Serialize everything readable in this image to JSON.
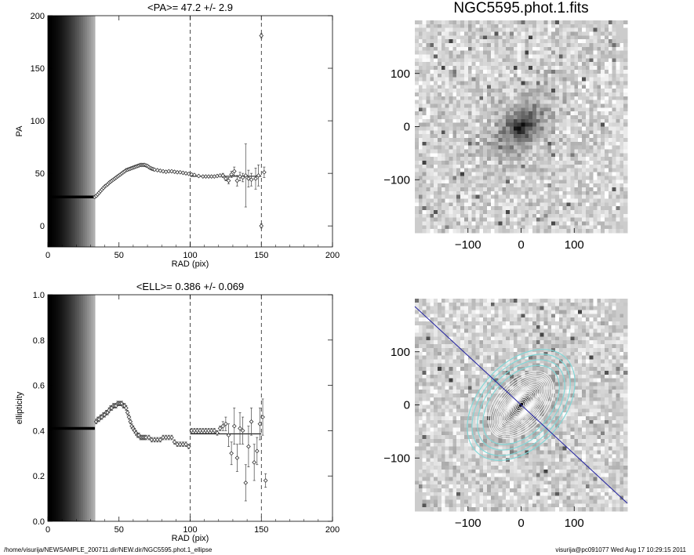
{
  "footer": {
    "path": "/home/visurija/NEWSAMPLE_200711.dir/NEW.dir/NGC5595.phot.1_ellipse",
    "user_stamp": "visurija@pc091077  Wed Aug 17 10:29:15 2011"
  },
  "chart_data": [
    {
      "id": "pa-panel",
      "type": "scatter",
      "title": "<PA>=  47.2 +/-   2.9",
      "xlabel": "RAD (pix)",
      "ylabel": "PA",
      "xlim": [
        0,
        200
      ],
      "ylim": [
        -20,
        200
      ],
      "xticks": [
        0,
        50,
        100,
        150,
        200
      ],
      "yticks": [
        0,
        50,
        100,
        150,
        200
      ],
      "fit_value": 47.2,
      "fit_range": [
        100,
        150
      ],
      "vlines": [
        100,
        150
      ],
      "grayscale_band_x": [
        0,
        33
      ],
      "inner_constant": {
        "x_range": [
          0,
          33
        ],
        "y": 27.5
      },
      "points": [
        [
          33,
          27.5,
          1
        ],
        [
          34,
          28.5,
          1
        ],
        [
          35,
          30,
          1
        ],
        [
          36,
          31.5,
          1
        ],
        [
          37,
          33,
          1
        ],
        [
          38,
          34.5,
          1
        ],
        [
          39,
          36,
          1
        ],
        [
          40,
          37.5,
          1
        ],
        [
          41,
          38.5,
          1
        ],
        [
          42,
          39.5,
          1
        ],
        [
          43,
          41,
          1
        ],
        [
          44,
          42,
          1
        ],
        [
          45,
          43,
          1
        ],
        [
          46,
          44,
          1
        ],
        [
          47,
          45,
          1
        ],
        [
          48,
          46,
          1
        ],
        [
          49,
          47,
          1
        ],
        [
          50,
          48,
          1
        ],
        [
          51,
          49,
          1
        ],
        [
          52,
          50,
          1
        ],
        [
          53,
          51,
          1
        ],
        [
          54,
          52,
          1
        ],
        [
          55,
          53,
          1
        ],
        [
          56,
          53.5,
          1
        ],
        [
          57,
          54,
          1
        ],
        [
          58,
          54.5,
          1
        ],
        [
          59,
          55,
          1
        ],
        [
          60,
          55.5,
          1
        ],
        [
          61,
          56,
          1
        ],
        [
          62,
          56.5,
          1
        ],
        [
          63,
          57,
          1
        ],
        [
          64,
          57.5,
          1
        ],
        [
          65,
          58,
          1
        ],
        [
          66,
          58,
          1
        ],
        [
          67,
          58,
          1
        ],
        [
          68,
          58,
          1
        ],
        [
          69,
          57.5,
          1
        ],
        [
          70,
          57,
          1
        ],
        [
          71,
          56,
          1
        ],
        [
          72,
          55,
          1
        ],
        [
          73,
          54.5,
          1
        ],
        [
          74,
          54,
          1
        ],
        [
          75,
          53.5,
          1
        ],
        [
          77,
          53,
          1
        ],
        [
          79,
          52.5,
          1
        ],
        [
          81,
          52,
          1
        ],
        [
          83,
          51.5,
          1
        ],
        [
          85,
          52,
          1
        ],
        [
          87,
          52,
          1
        ],
        [
          89,
          51.5,
          1
        ],
        [
          91,
          51,
          1
        ],
        [
          93,
          51,
          1
        ],
        [
          95,
          50.5,
          1
        ],
        [
          97,
          50,
          1
        ],
        [
          99,
          49.5,
          1
        ],
        [
          101,
          49,
          1
        ],
        [
          103,
          48.5,
          1
        ],
        [
          106,
          47.5,
          1
        ],
        [
          109,
          47,
          1
        ],
        [
          111,
          47,
          1
        ],
        [
          113,
          47,
          1
        ],
        [
          115,
          47,
          1
        ],
        [
          117,
          47,
          1
        ],
        [
          119,
          47.5,
          1
        ],
        [
          121,
          48,
          1
        ],
        [
          123,
          48,
          2
        ],
        [
          125,
          45,
          2
        ],
        [
          127,
          43,
          3
        ],
        [
          129,
          49,
          3
        ],
        [
          131,
          52,
          4
        ],
        [
          133,
          43,
          5
        ],
        [
          135,
          47,
          4
        ],
        [
          137,
          46,
          4
        ],
        [
          139,
          48,
          30
        ],
        [
          141,
          45,
          8
        ],
        [
          143,
          44,
          6
        ],
        [
          146,
          45,
          10
        ],
        [
          148,
          48,
          10
        ],
        [
          150,
          0,
          2
        ],
        [
          150,
          181,
          2
        ],
        [
          152,
          51,
          5
        ]
      ]
    },
    {
      "id": "ell-panel",
      "type": "scatter",
      "title": "<ELL>= 0.386 +/-  0.069",
      "xlabel": "RAD (pix)",
      "ylabel": "ellipticity",
      "xlim": [
        0,
        200
      ],
      "ylim": [
        0.0,
        1.0
      ],
      "xticks": [
        0,
        50,
        100,
        150,
        200
      ],
      "yticks": [
        "0.0",
        "0.2",
        "0.4",
        "0.6",
        "0.8",
        "1.0"
      ],
      "fit_value": 0.386,
      "fit_range": [
        100,
        150
      ],
      "vlines": [
        100,
        150
      ],
      "grayscale_band_x": [
        0,
        33
      ],
      "inner_constant": {
        "x_range": [
          0,
          33
        ],
        "y": 0.41
      },
      "points": [
        [
          34,
          0.44,
          0.01
        ],
        [
          35,
          0.45,
          0.01
        ],
        [
          36,
          0.45,
          0.01
        ],
        [
          37,
          0.46,
          0.01
        ],
        [
          38,
          0.46,
          0.01
        ],
        [
          39,
          0.47,
          0.01
        ],
        [
          40,
          0.47,
          0.01
        ],
        [
          41,
          0.48,
          0.01
        ],
        [
          42,
          0.48,
          0.01
        ],
        [
          43,
          0.49,
          0.01
        ],
        [
          44,
          0.5,
          0.01
        ],
        [
          45,
          0.5,
          0.01
        ],
        [
          46,
          0.51,
          0.01
        ],
        [
          47,
          0.51,
          0.01
        ],
        [
          48,
          0.51,
          0.01
        ],
        [
          49,
          0.52,
          0.01
        ],
        [
          50,
          0.52,
          0.01
        ],
        [
          51,
          0.52,
          0.01
        ],
        [
          52,
          0.52,
          0.01
        ],
        [
          53,
          0.51,
          0.01
        ],
        [
          54,
          0.51,
          0.01
        ],
        [
          55,
          0.5,
          0.01
        ],
        [
          56,
          0.48,
          0.01
        ],
        [
          57,
          0.46,
          0.01
        ],
        [
          58,
          0.44,
          0.01
        ],
        [
          59,
          0.42,
          0.01
        ],
        [
          60,
          0.41,
          0.01
        ],
        [
          61,
          0.4,
          0.01
        ],
        [
          62,
          0.39,
          0.01
        ],
        [
          63,
          0.38,
          0.01
        ],
        [
          64,
          0.38,
          0.01
        ],
        [
          65,
          0.37,
          0.01
        ],
        [
          66,
          0.37,
          0.01
        ],
        [
          67,
          0.37,
          0.01
        ],
        [
          68,
          0.37,
          0.01
        ],
        [
          69,
          0.37,
          0.01
        ],
        [
          71,
          0.37,
          0.01
        ],
        [
          73,
          0.36,
          0.01
        ],
        [
          75,
          0.36,
          0.01
        ],
        [
          77,
          0.36,
          0.01
        ],
        [
          79,
          0.36,
          0.01
        ],
        [
          81,
          0.37,
          0.01
        ],
        [
          83,
          0.37,
          0.01
        ],
        [
          85,
          0.37,
          0.01
        ],
        [
          87,
          0.37,
          0.01
        ],
        [
          89,
          0.35,
          0.01
        ],
        [
          91,
          0.34,
          0.01
        ],
        [
          93,
          0.34,
          0.01
        ],
        [
          95,
          0.34,
          0.01
        ],
        [
          97,
          0.34,
          0.01
        ],
        [
          99,
          0.33,
          0.01
        ],
        [
          101,
          0.4,
          0.01
        ],
        [
          103,
          0.4,
          0.01
        ],
        [
          105,
          0.4,
          0.01
        ],
        [
          107,
          0.4,
          0.01
        ],
        [
          109,
          0.4,
          0.01
        ],
        [
          111,
          0.4,
          0.01
        ],
        [
          113,
          0.4,
          0.01
        ],
        [
          115,
          0.4,
          0.01
        ],
        [
          117,
          0.4,
          0.01
        ],
        [
          119,
          0.39,
          0.01
        ],
        [
          121,
          0.41,
          0.01
        ],
        [
          123,
          0.42,
          0.02
        ],
        [
          125,
          0.43,
          0.03
        ],
        [
          127,
          0.38,
          0.05
        ],
        [
          129,
          0.3,
          0.05
        ],
        [
          131,
          0.42,
          0.08
        ],
        [
          133,
          0.28,
          0.06
        ],
        [
          135,
          0.41,
          0.07
        ],
        [
          137,
          0.4,
          0.06
        ],
        [
          139,
          0.17,
          0.08
        ],
        [
          141,
          0.33,
          0.09
        ],
        [
          143,
          0.44,
          0.06
        ],
        [
          145,
          0.26,
          0.08
        ],
        [
          147,
          0.31,
          0.06
        ],
        [
          149,
          0.43,
          0.07
        ],
        [
          151,
          0.46,
          0.08
        ],
        [
          153,
          0.18,
          0.03
        ]
      ]
    },
    {
      "id": "image-panel-top",
      "type": "heatmap",
      "title": "NGC5595.phot.1.fits",
      "xlim": [
        -200,
        200
      ],
      "ylim": [
        -200,
        200
      ],
      "xticks": [
        -100,
        0,
        100
      ],
      "yticks": [
        -100,
        0,
        100
      ],
      "galaxy_pa_deg": 47.2,
      "galaxy_ellipticity": 0.386
    },
    {
      "id": "image-panel-bottom",
      "type": "heatmap",
      "title": "",
      "xlim": [
        -200,
        200
      ],
      "ylim": [
        -200,
        200
      ],
      "xticks": [
        -100,
        0,
        100
      ],
      "yticks": [
        -100,
        0,
        100
      ],
      "isophote_colors": {
        "inner": "#ffffff",
        "outer": "#7fd8d8"
      },
      "pa_line_color": "#2020a0"
    }
  ]
}
